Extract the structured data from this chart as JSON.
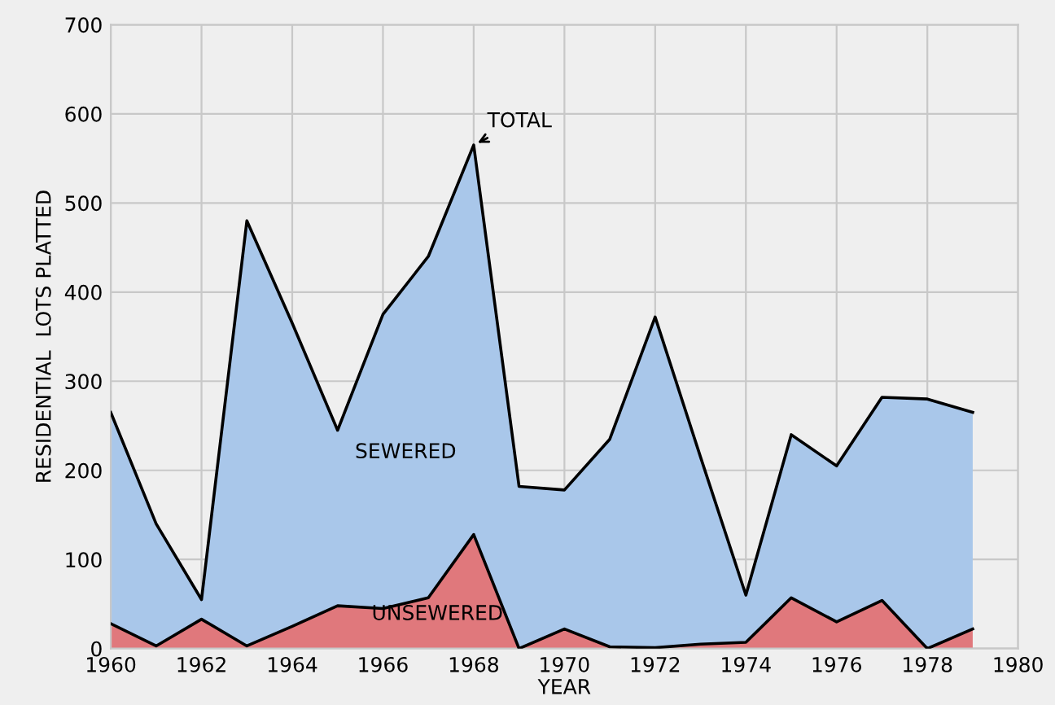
{
  "chart_data": {
    "type": "area",
    "stacked": true,
    "xlabel": "YEAR",
    "ylabel": "RESIDENTIAL  LOTS PLATTED",
    "x": [
      1960,
      1961,
      1962,
      1963,
      1964,
      1965,
      1966,
      1967,
      1968,
      1969,
      1970,
      1971,
      1972,
      1973,
      1974,
      1975,
      1976,
      1977,
      1978,
      1979
    ],
    "series": [
      {
        "name": "UNSEWERED",
        "color": "#e0787c",
        "values": [
          28,
          3,
          33,
          3,
          25,
          48,
          45,
          57,
          128,
          0,
          22,
          2,
          1,
          5,
          7,
          57,
          30,
          54,
          0,
          22
        ]
      },
      {
        "name": "SEWERED",
        "color": "#a9c7ea",
        "values": [
          237,
          137,
          22,
          477,
          340,
          197,
          330,
          383,
          437,
          182,
          156,
          233,
          371,
          210,
          53,
          183,
          175,
          228,
          280,
          243
        ]
      }
    ],
    "xlim": [
      1960,
      1980
    ],
    "xticks": [
      1960,
      1962,
      1964,
      1966,
      1968,
      1970,
      1972,
      1974,
      1976,
      1978,
      1980
    ],
    "ylim": [
      0,
      700
    ],
    "yticks": [
      0,
      100,
      200,
      300,
      400,
      500,
      600,
      700
    ],
    "grid": true,
    "annotations": [
      {
        "text": "TOTAL",
        "x": 1968,
        "y": 565
      }
    ]
  }
}
